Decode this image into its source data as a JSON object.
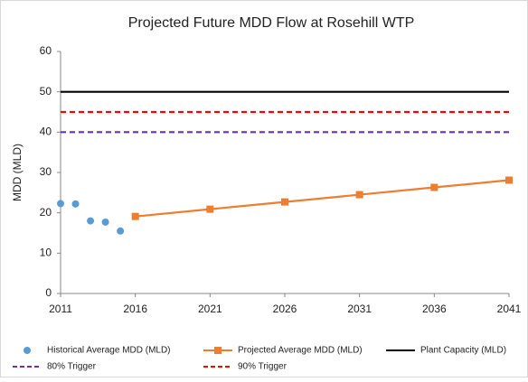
{
  "chart_data": {
    "type": "line",
    "title": "Projected Future MDD Flow at Rosehill WTP",
    "ylabel": "MDD (MLD)",
    "xlim": [
      2011,
      2041
    ],
    "xticks": [
      2011,
      2016,
      2021,
      2026,
      2031,
      2036,
      2041
    ],
    "ylim": [
      0,
      60
    ],
    "yticks": [
      0,
      10,
      20,
      30,
      40,
      50,
      60
    ],
    "grid": false,
    "legend": "bottom",
    "series": [
      {
        "name": "Historical Average MDD (MLD)",
        "color": "#5b9bd5",
        "line": false,
        "marker": "circle",
        "dash": false,
        "x": [
          2011,
          2012,
          2013,
          2014,
          2015
        ],
        "values": [
          22.3,
          22.2,
          18.0,
          17.7,
          15.5
        ]
      },
      {
        "name": "Projected Average MDD (MLD)",
        "color": "#ed7d31",
        "line": true,
        "marker": "square",
        "dash": false,
        "x": [
          2016,
          2021,
          2026,
          2031,
          2036,
          2041
        ],
        "values": [
          19.1,
          20.9,
          22.7,
          24.5,
          26.3,
          28.1
        ]
      },
      {
        "name": "Plant Capacity (MLD)",
        "color": "#000000",
        "line": true,
        "marker": "none",
        "dash": false,
        "x": [
          2011,
          2041
        ],
        "values": [
          50,
          50
        ]
      },
      {
        "name": "80% Trigger",
        "color": "#7030a0",
        "line": true,
        "marker": "none",
        "dash": true,
        "x": [
          2011,
          2041
        ],
        "values": [
          40,
          40
        ]
      },
      {
        "name": "90% Trigger",
        "color": "#ff0000",
        "line": true,
        "marker": "none",
        "dash": true,
        "x": [
          2011,
          2041
        ],
        "values": [
          45,
          45
        ]
      }
    ]
  }
}
